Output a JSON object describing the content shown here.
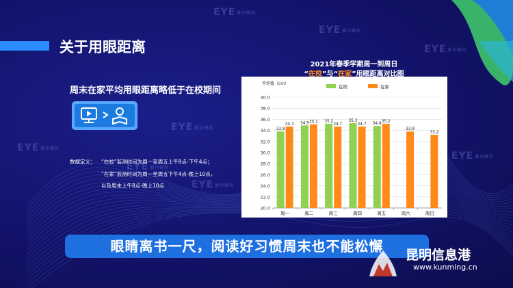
{
  "slide": {
    "title": "关于用眼距离",
    "subtitle": "周末在家平均用眼距离略低于在校期间",
    "definition_label": "数据定义：",
    "definitions": [
      "“在校”监测时间为周一至周五上午8点-下午4点；",
      "“在家”监测时间为周一至周五下午4点-晚上10点，",
      "以及周末上午8点-晚上10点"
    ],
    "banner": "眼睛离书一尺，阅读好习惯周末也不能松懈",
    "watermark_brand": "EYE",
    "watermark_sub": "爱尔眼科",
    "site_name": "昆明信息港",
    "site_url": "www.kunming.cn",
    "illus_icon": "monitor-to-book-icon"
  },
  "chart_data": {
    "type": "bar",
    "title_line1": "2021年春季学期周一到周日",
    "title_line2_parts": [
      "“",
      "在校",
      "”与“",
      "在家",
      "”用眼距离对比图"
    ],
    "ylabel": "平均值（cm）",
    "ylim": [
      20.0,
      40.0
    ],
    "yticks": [
      "20.0",
      "22.0",
      "24.0",
      "26.0",
      "28.0",
      "30.0",
      "32.0",
      "34.0",
      "36.0",
      "38.0",
      "40.0"
    ],
    "categories": [
      "周一",
      "周二",
      "周三",
      "周四",
      "周五",
      "周六",
      "周日"
    ],
    "series": [
      {
        "name": "在校",
        "color": "#92d050",
        "values": [
          33.8,
          34.9,
          35.2,
          35.3,
          34.8,
          null,
          null
        ],
        "labels": [
          "33.8",
          "34.9",
          "35.2",
          "35.3",
          "34.8",
          "",
          ""
        ]
      },
      {
        "name": "在家",
        "color": "#ff8a1a",
        "values": [
          34.7,
          35.1,
          34.7,
          34.7,
          35.2,
          33.8,
          33.2
        ],
        "labels": [
          "34.7",
          "35.1",
          "34.7",
          "34.7",
          "35.2",
          "33.8",
          "33.2"
        ]
      }
    ],
    "grid": true,
    "legend_position": "top-center",
    "label_color": "#ffffff"
  },
  "colors": {
    "accent": "#2b8cff",
    "highlight": "#ff8a1a",
    "banner": "#1e6fe0"
  }
}
